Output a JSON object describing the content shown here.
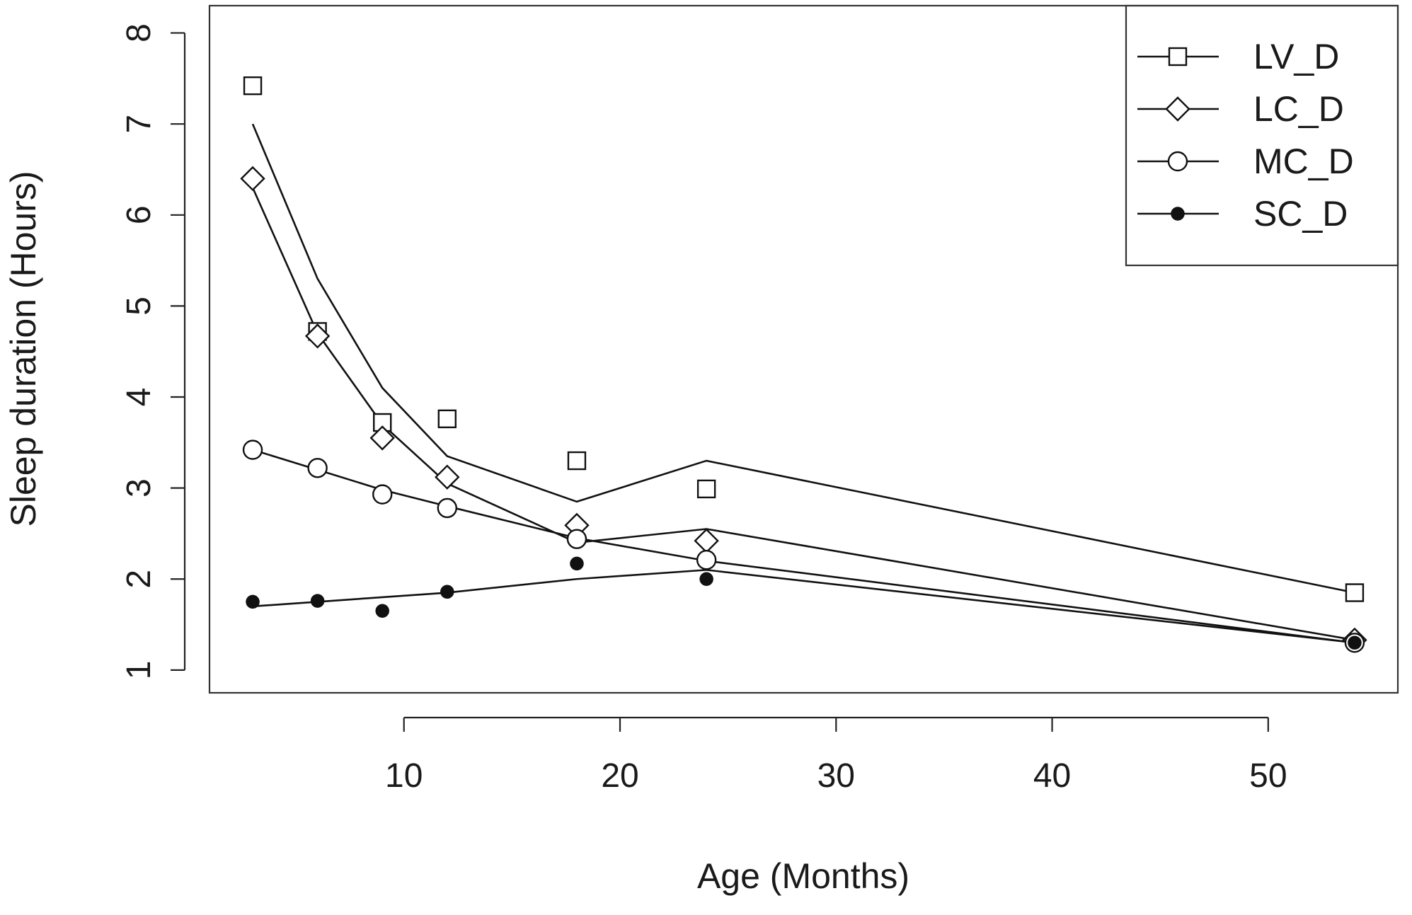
{
  "chart_data": {
    "type": "line",
    "title": "",
    "xlabel": "Age (Months)",
    "ylabel": "Sleep duration (Hours)",
    "xlim": [
      1,
      56
    ],
    "ylim": [
      0.75,
      8.3
    ],
    "xticks": [
      10,
      20,
      30,
      40,
      50
    ],
    "yticks": [
      1,
      2,
      3,
      4,
      5,
      6,
      7,
      8
    ],
    "grid": false,
    "legend_position": "top-right",
    "x": [
      3,
      6,
      9,
      12,
      18,
      24,
      54
    ],
    "series": [
      {
        "name": "LV_D",
        "marker": "square",
        "points": [
          7.42,
          4.72,
          3.72,
          3.76,
          3.3,
          2.99,
          1.85
        ],
        "fitted": [
          7.0,
          5.3,
          4.1,
          3.35,
          2.85,
          3.3,
          1.85
        ]
      },
      {
        "name": "LC_D",
        "marker": "diamond",
        "points": [
          6.4,
          4.67,
          3.55,
          3.12,
          2.59,
          2.42,
          1.33
        ],
        "fitted": [
          6.3,
          4.7,
          3.7,
          3.05,
          2.4,
          2.55,
          1.33
        ]
      },
      {
        "name": "MC_D",
        "marker": "circle-open",
        "points": [
          3.42,
          3.22,
          2.93,
          2.78,
          2.44,
          2.21,
          1.3
        ],
        "fitted": [
          3.42,
          3.2,
          2.98,
          2.8,
          2.45,
          2.2,
          1.3
        ]
      },
      {
        "name": "SC_D",
        "marker": "circle-filled",
        "points": [
          1.75,
          1.76,
          1.65,
          1.86,
          2.17,
          2.0,
          1.3
        ],
        "fitted": [
          1.7,
          1.75,
          1.8,
          1.85,
          2.0,
          2.1,
          1.3
        ]
      }
    ]
  },
  "colors": {
    "ink": "#111111",
    "background": "#ffffff"
  }
}
